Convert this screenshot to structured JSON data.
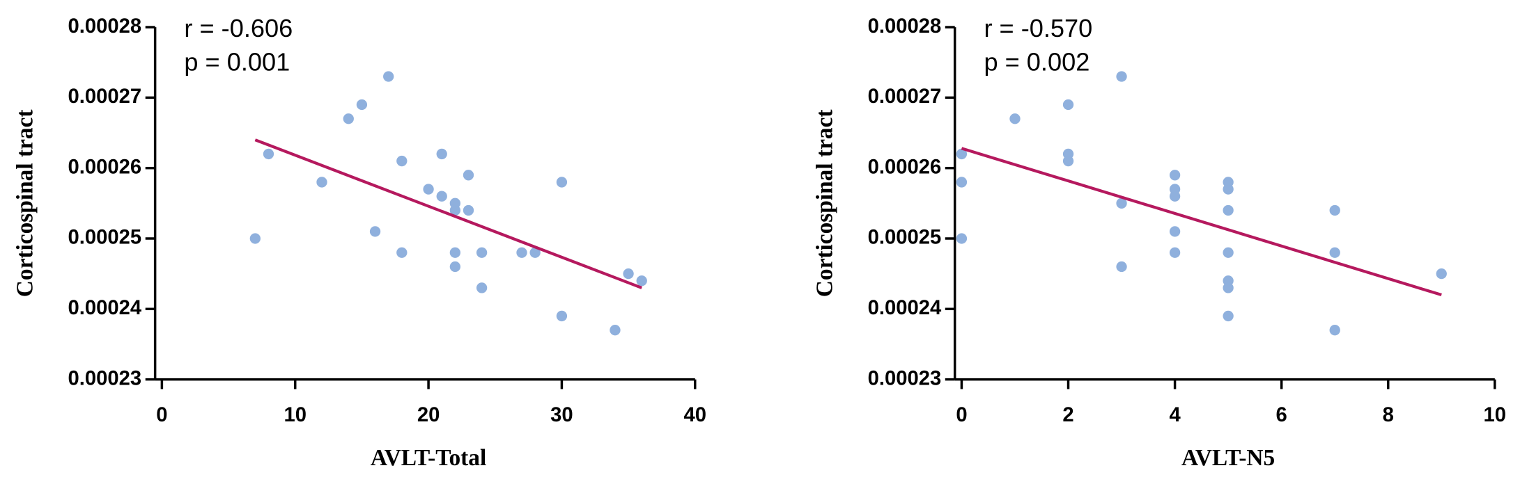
{
  "chart_data": [
    {
      "type": "scatter",
      "annotations": [
        "r = -0.606",
        "p = 0.001"
      ],
      "x_label": "AVLT-Total",
      "y_label": "Corticospinal tract",
      "x": [
        7,
        8,
        12,
        14,
        15,
        17,
        16,
        18,
        18,
        20,
        21,
        21,
        22,
        22,
        22,
        22,
        23,
        23,
        24,
        24,
        27,
        28,
        30,
        30,
        34,
        35,
        36
      ],
      "values": [
        0.00025,
        0.000262,
        0.000258,
        0.000267,
        0.000269,
        0.000273,
        0.000251,
        0.000261,
        0.000248,
        0.000257,
        0.000262,
        0.000256,
        0.000255,
        0.000254,
        0.000248,
        0.000246,
        0.000259,
        0.000254,
        0.000248,
        0.000243,
        0.000248,
        0.000248,
        0.000258,
        0.000239,
        0.000237,
        0.000245,
        0.000244
      ],
      "color": "#8fb0dd",
      "fit": {
        "x": [
          7,
          36
        ],
        "y": [
          0.000264,
          0.000243
        ],
        "color": "#b5195e"
      },
      "xlim": [
        0,
        40
      ],
      "xticks": [
        0,
        10,
        20,
        30,
        40
      ],
      "ylim": [
        0.00023,
        0.00028
      ],
      "yticks": [
        0.00023,
        0.00024,
        0.00025,
        0.00026,
        0.00027,
        0.00028
      ]
    },
    {
      "type": "scatter",
      "annotations": [
        "r = -0.570",
        "p = 0.002"
      ],
      "x_label": "AVLT-N5",
      "y_label": "Corticospinal tract",
      "x": [
        0,
        0,
        0,
        1,
        2,
        2,
        2,
        3,
        3,
        3,
        4,
        4,
        4,
        4,
        4,
        5,
        5,
        5,
        5,
        5,
        5,
        5,
        7,
        7,
        7,
        9
      ],
      "values": [
        0.000262,
        0.000258,
        0.00025,
        0.000267,
        0.000269,
        0.000262,
        0.000261,
        0.000273,
        0.000255,
        0.000246,
        0.000259,
        0.000257,
        0.000256,
        0.000251,
        0.000248,
        0.000258,
        0.000257,
        0.000254,
        0.000248,
        0.000244,
        0.000243,
        0.000239,
        0.000254,
        0.000248,
        0.000237,
        0.000245
      ],
      "color": "#8fb0dd",
      "fit": {
        "x": [
          0,
          9
        ],
        "y": [
          0.0002628,
          0.000242
        ],
        "color": "#b5195e"
      },
      "xlim": [
        0,
        10
      ],
      "xticks": [
        0,
        2,
        4,
        6,
        8,
        10
      ],
      "ylim": [
        0.00023,
        0.00028
      ],
      "yticks": [
        0.00023,
        0.00024,
        0.00025,
        0.00026,
        0.00027,
        0.00028
      ]
    }
  ]
}
